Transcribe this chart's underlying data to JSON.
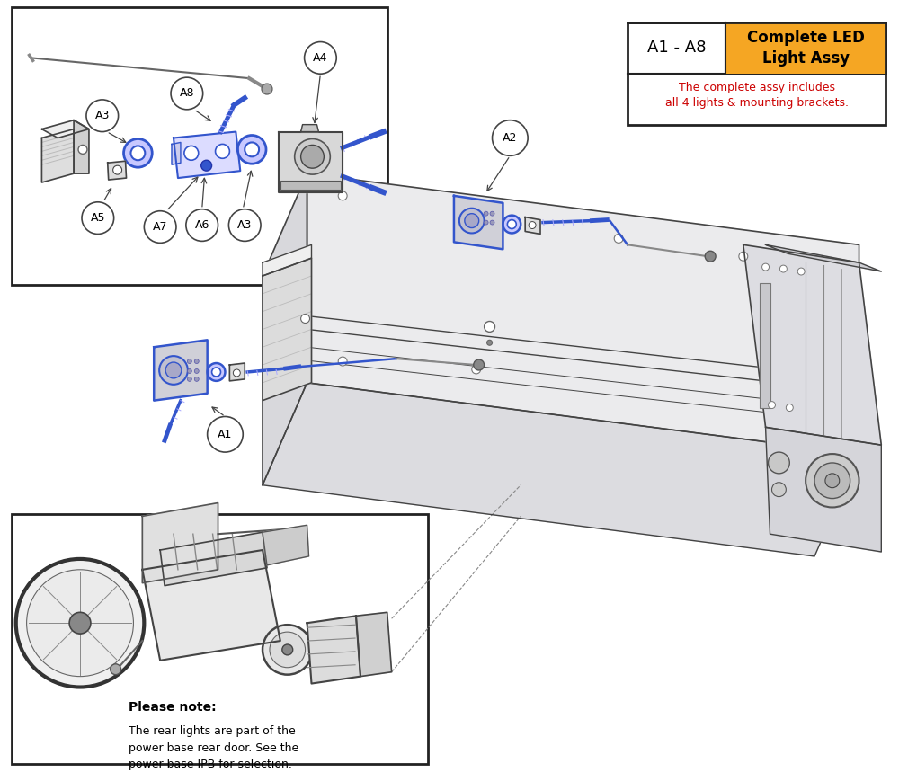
{
  "legend_box": {
    "part_code": "A1 - A8",
    "part_name": "Complete LED\nLight Assy",
    "description": "The complete assy includes\nall 4 lights & mounting brackets.",
    "header_bg": "#F5A623",
    "border_color": "#222222",
    "desc_color": "#CC0000"
  },
  "note_bold": "Please note:",
  "note_text": "The rear lights are part of the\npower base rear door. See the\npower base IPB for selection.",
  "bg_color": "#FFFFFF",
  "line_color": "#444444",
  "blue_color": "#3355CC",
  "callout_circle_color": "#FFFFFF",
  "callout_border_color": "#333333",
  "inset_border_color": "#222222",
  "figure_bg": "#FFFFFF",
  "dpi": 100,
  "figw": 10.0,
  "figh": 8.69
}
